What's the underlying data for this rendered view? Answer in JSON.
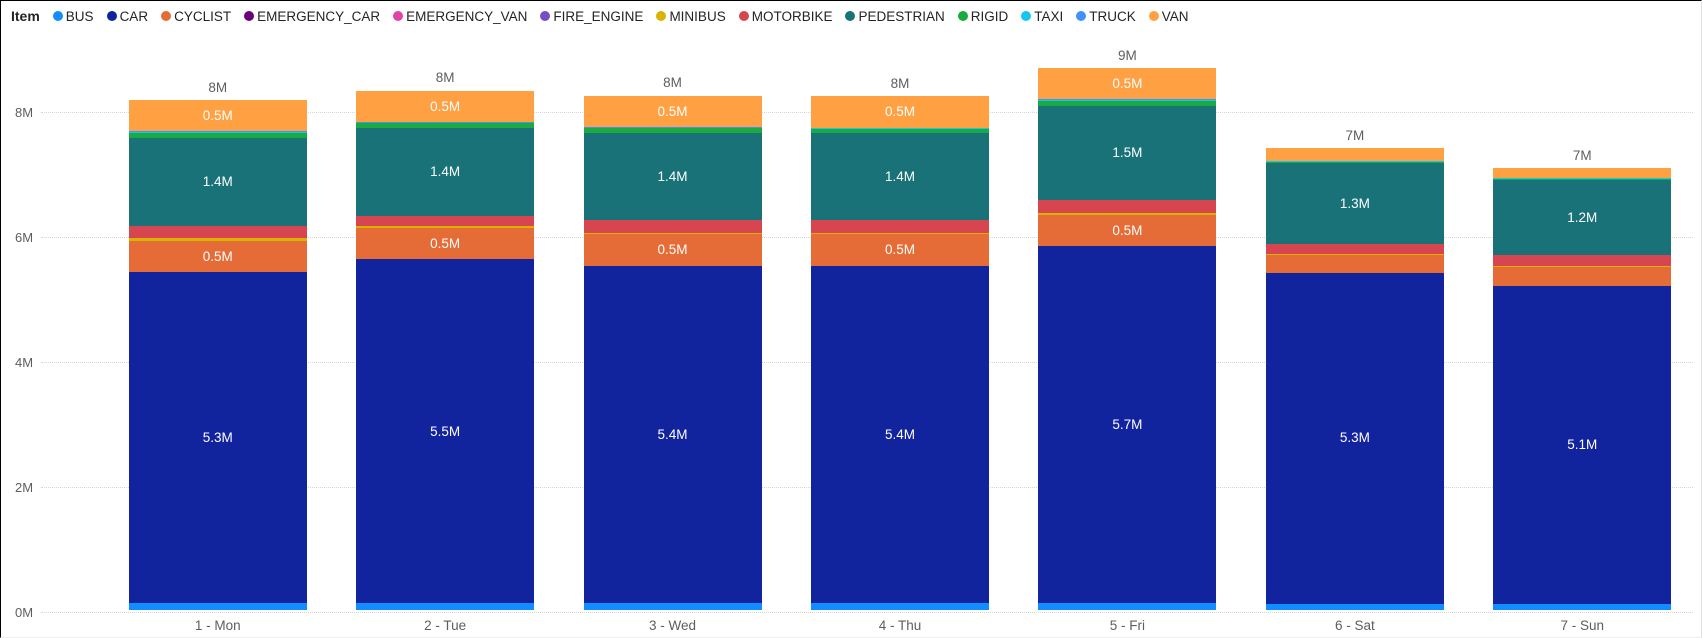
{
  "legend": {
    "title": "Item",
    "items": [
      {
        "label": "BUS"
      },
      {
        "label": "CAR"
      },
      {
        "label": "CYCLIST"
      },
      {
        "label": "EMERGENCY_CAR"
      },
      {
        "label": "EMERGENCY_VAN"
      },
      {
        "label": "FIRE_ENGINE"
      },
      {
        "label": "MINIBUS"
      },
      {
        "label": "MOTORBIKE"
      },
      {
        "label": "PEDESTRIAN"
      },
      {
        "label": "RIGID"
      },
      {
        "label": "TAXI"
      },
      {
        "label": "TRUCK"
      },
      {
        "label": "VAN"
      }
    ]
  },
  "chart_data": {
    "type": "bar",
    "stacked": true,
    "legend_position": "top",
    "grid": "horizontal-dotted",
    "value_suffix": "M",
    "categories": [
      "1 - Mon",
      "2 - Tue",
      "3 - Wed",
      "4 - Thu",
      "5 - Fri",
      "6 - Sat",
      "7 - Sun"
    ],
    "total_labels": [
      "8M",
      "8M",
      "8M",
      "8M",
      "9M",
      "7M",
      "7M"
    ],
    "y_axis": {
      "min": 0,
      "max": 8,
      "ticks": [
        {
          "value": 0,
          "label": "0M"
        },
        {
          "value": 2,
          "label": "2M"
        },
        {
          "value": 4,
          "label": "4M"
        },
        {
          "value": 6,
          "label": "6M"
        },
        {
          "value": 8,
          "label": "8M"
        }
      ]
    },
    "series": [
      {
        "name": "BUS",
        "color": "#118DFF",
        "values": [
          0.11,
          0.11,
          0.11,
          0.11,
          0.12,
          0.1,
          0.09
        ],
        "labels": [
          null,
          null,
          null,
          null,
          null,
          null,
          null
        ]
      },
      {
        "name": "CAR",
        "color": "#12239E",
        "values": [
          5.3,
          5.5,
          5.4,
          5.4,
          5.7,
          5.3,
          5.1
        ],
        "labels": [
          "5.3M",
          "5.5M",
          "5.4M",
          "5.4M",
          "5.7M",
          "5.3M",
          "5.1M"
        ]
      },
      {
        "name": "CYCLIST",
        "color": "#E66C37",
        "values": [
          0.5,
          0.5,
          0.5,
          0.5,
          0.5,
          0.28,
          0.3
        ],
        "labels": [
          "0.5M",
          "0.5M",
          "0.5M",
          "0.5M",
          "0.5M",
          null,
          null
        ]
      },
      {
        "name": "EMERGENCY_CAR",
        "color": "#6B007B",
        "values": [
          0,
          0,
          0,
          0,
          0,
          0,
          0
        ],
        "labels": [
          null,
          null,
          null,
          null,
          null,
          null,
          null
        ]
      },
      {
        "name": "EMERGENCY_VAN",
        "color": "#E044A7",
        "values": [
          0,
          0,
          0,
          0,
          0,
          0,
          0
        ],
        "labels": [
          null,
          null,
          null,
          null,
          null,
          null,
          null
        ]
      },
      {
        "name": "FIRE_ENGINE",
        "color": "#744EC2",
        "values": [
          0,
          0,
          0,
          0,
          0,
          0,
          0
        ],
        "labels": [
          null,
          null,
          null,
          null,
          null,
          null,
          null
        ]
      },
      {
        "name": "MINIBUS",
        "color": "#D9B300",
        "values": [
          0.04,
          0.04,
          0.03,
          0.03,
          0.04,
          0.02,
          0.02
        ],
        "labels": [
          null,
          null,
          null,
          null,
          null,
          null,
          null
        ]
      },
      {
        "name": "MOTORBIKE",
        "color": "#D64550",
        "values": [
          0.2,
          0.16,
          0.2,
          0.2,
          0.2,
          0.15,
          0.17
        ],
        "labels": [
          null,
          null,
          null,
          null,
          null,
          null,
          null
        ]
      },
      {
        "name": "PEDESTRIAN",
        "color": "#197278",
        "values": [
          1.4,
          1.4,
          1.4,
          1.4,
          1.5,
          1.3,
          1.2
        ],
        "labels": [
          "1.4M",
          "1.4M",
          "1.4M",
          "1.4M",
          "1.5M",
          "1.3M",
          "1.2M"
        ]
      },
      {
        "name": "RIGID",
        "color": "#1AAB40",
        "values": [
          0.09,
          0.08,
          0.07,
          0.06,
          0.09,
          0.02,
          0.02
        ],
        "labels": [
          null,
          null,
          null,
          null,
          null,
          null,
          null
        ]
      },
      {
        "name": "TAXI",
        "color": "#15C6F4",
        "values": [
          0.01,
          0.01,
          0.01,
          0.01,
          0.01,
          0.01,
          0.01
        ],
        "labels": [
          null,
          null,
          null,
          null,
          null,
          null,
          null
        ]
      },
      {
        "name": "TRUCK",
        "color": "#4092FF",
        "values": [
          0.01,
          0.01,
          0.01,
          0.01,
          0.01,
          0.01,
          0.01
        ],
        "labels": [
          null,
          null,
          null,
          null,
          null,
          null,
          null
        ]
      },
      {
        "name": "VAN",
        "color": "#FFA043",
        "values": [
          0.5,
          0.5,
          0.5,
          0.5,
          0.5,
          0.2,
          0.15
        ],
        "labels": [
          "0.5M",
          "0.5M",
          "0.5M",
          "0.5M",
          "0.5M",
          null,
          null
        ]
      }
    ]
  }
}
